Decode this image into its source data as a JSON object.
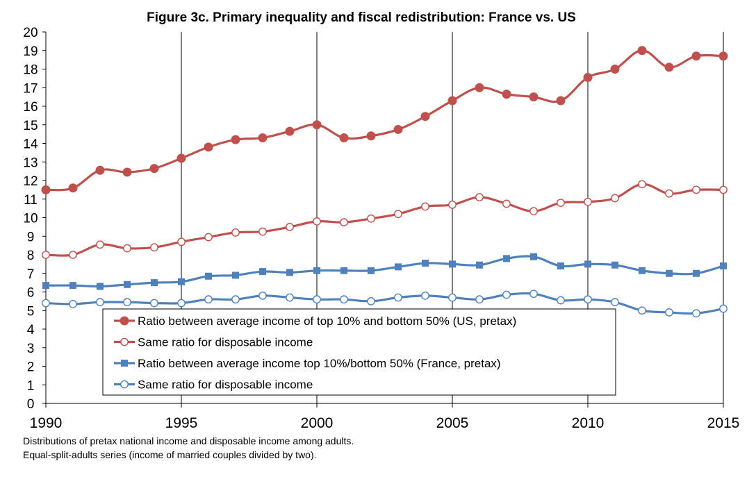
{
  "chart_data": {
    "type": "line",
    "title": "Figure 3c. Primary inequality and fiscal redistribution: France vs. US",
    "xlabel": "",
    "ylabel": "",
    "xlim": [
      1990,
      2015
    ],
    "ylim": [
      0,
      20
    ],
    "x_ticks": [
      "1990",
      "1995",
      "2000",
      "2005",
      "2010",
      "2015"
    ],
    "y_ticks": [
      "0",
      "1",
      "2",
      "3",
      "4",
      "5",
      "6",
      "7",
      "8",
      "9",
      "10",
      "11",
      "12",
      "13",
      "14",
      "15",
      "16",
      "17",
      "18",
      "19",
      "20"
    ],
    "grid": "vertical lines at x ticks",
    "legend_position": "lower-left inside plot",
    "x": [
      1990,
      1991,
      1992,
      1993,
      1994,
      1995,
      1996,
      1997,
      1998,
      1999,
      2000,
      2001,
      2002,
      2003,
      2004,
      2005,
      2006,
      2007,
      2008,
      2009,
      2010,
      2011,
      2012,
      2013,
      2014,
      2015
    ],
    "series": [
      {
        "name": "Ratio between average income of top 10% and bottom 50% (US, pretax)",
        "color": "#c0504d",
        "marker": "filled-circle",
        "values": [
          11.5,
          11.6,
          12.55,
          12.45,
          12.65,
          13.2,
          13.8,
          14.2,
          14.3,
          14.65,
          15.0,
          14.3,
          14.4,
          14.75,
          15.45,
          16.3,
          17.0,
          16.65,
          16.5,
          16.3,
          17.55,
          18.0,
          19.0,
          18.1,
          18.7,
          18.7
        ]
      },
      {
        "name": "Same ratio for disposable income",
        "color": "#c0504d",
        "marker": "hollow-circle",
        "values": [
          8.0,
          8.0,
          8.55,
          8.35,
          8.4,
          8.7,
          8.95,
          9.2,
          9.25,
          9.5,
          9.8,
          9.75,
          9.95,
          10.2,
          10.6,
          10.7,
          11.1,
          10.75,
          10.35,
          10.8,
          10.85,
          11.05,
          11.8,
          11.3,
          11.5,
          11.5
        ]
      },
      {
        "name": "Ratio between average income top 10%/bottom 50% (France, pretax)",
        "color": "#4f81bd",
        "marker": "filled-square",
        "values": [
          6.35,
          6.35,
          6.3,
          6.4,
          6.5,
          6.55,
          6.85,
          6.9,
          7.1,
          7.05,
          7.15,
          7.15,
          7.15,
          7.35,
          7.55,
          7.5,
          7.45,
          7.8,
          7.9,
          7.4,
          7.5,
          7.45,
          7.15,
          7.0,
          7.0,
          7.4
        ]
      },
      {
        "name": "Same ratio for disposable income",
        "color": "#4f81bd",
        "marker": "hollow-circle",
        "values": [
          5.4,
          5.35,
          5.45,
          5.45,
          5.4,
          5.4,
          5.6,
          5.6,
          5.8,
          5.7,
          5.6,
          5.6,
          5.5,
          5.7,
          5.8,
          5.7,
          5.6,
          5.85,
          5.9,
          5.55,
          5.6,
          5.45,
          5.0,
          4.9,
          4.85,
          5.1
        ]
      }
    ]
  },
  "notes": [
    "Distributions of pretax national income and disposable income among adults.",
    "Equal-split-adults series (income of married couples divided by two)."
  ]
}
